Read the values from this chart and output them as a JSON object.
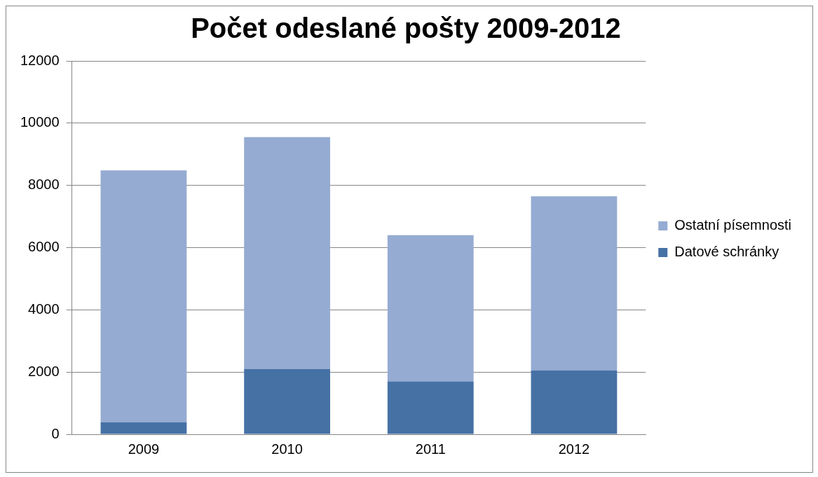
{
  "chart_data": {
    "type": "bar",
    "title": "Počet odeslané pošty 2009-2012",
    "categories": [
      "2009",
      "2010",
      "2011",
      "2012"
    ],
    "stacked": true,
    "series": [
      {
        "name": "Datové schránky",
        "color": "#4671a5",
        "values": [
          380,
          2100,
          1700,
          2050
        ]
      },
      {
        "name": "Ostatní písemnosti",
        "color": "#95abd2",
        "values": [
          8100,
          7450,
          4700,
          5600
        ]
      }
    ],
    "ylim": [
      0,
      12000
    ],
    "yticks": [
      0,
      2000,
      4000,
      6000,
      8000,
      10000,
      12000
    ],
    "grid": "y",
    "legend": "right"
  }
}
